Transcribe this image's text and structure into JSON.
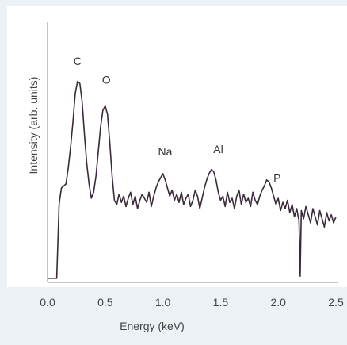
{
  "chart_data": {
    "type": "line",
    "title": "",
    "xlabel": "Energy (keV)",
    "ylabel": "Intensity (arb. units)",
    "xlim": [
      0,
      2.5
    ],
    "ylim": [
      0,
      1.3
    ],
    "grid": false,
    "tick_labels": [
      "0.0",
      "0.5",
      "1.0",
      "1.5",
      "2.0",
      "2.5"
    ],
    "peak_labels": [
      {
        "text": "C",
        "x": 0.26,
        "y": 1.06
      },
      {
        "text": "O",
        "x": 0.51,
        "y": 0.97
      },
      {
        "text": "Na",
        "x": 1.02,
        "y": 0.62
      },
      {
        "text": "Al",
        "x": 1.48,
        "y": 0.63
      },
      {
        "text": "P",
        "x": 1.99,
        "y": 0.49
      }
    ],
    "series": [
      {
        "x": [
          0.0,
          0.05,
          0.08,
          0.09,
          0.1,
          0.11,
          0.12,
          0.14,
          0.16,
          0.18,
          0.2,
          0.22,
          0.24,
          0.26,
          0.28,
          0.3,
          0.32,
          0.34,
          0.36,
          0.38,
          0.4,
          0.42,
          0.44,
          0.46,
          0.48,
          0.5,
          0.52,
          0.54,
          0.56,
          0.58,
          0.6,
          0.62,
          0.64,
          0.66,
          0.68,
          0.7,
          0.72,
          0.74,
          0.76,
          0.78,
          0.8,
          0.82,
          0.84,
          0.86,
          0.88,
          0.9,
          0.92,
          0.94,
          0.96,
          0.98,
          1.0,
          1.02,
          1.04,
          1.06,
          1.08,
          1.1,
          1.12,
          1.14,
          1.16,
          1.18,
          1.2,
          1.22,
          1.24,
          1.26,
          1.28,
          1.3,
          1.32,
          1.34,
          1.36,
          1.38,
          1.4,
          1.42,
          1.44,
          1.46,
          1.48,
          1.5,
          1.52,
          1.54,
          1.56,
          1.58,
          1.6,
          1.62,
          1.64,
          1.66,
          1.68,
          1.7,
          1.72,
          1.74,
          1.76,
          1.78,
          1.8,
          1.82,
          1.84,
          1.86,
          1.88,
          1.9,
          1.92,
          1.94,
          1.96,
          1.98,
          2.0,
          2.02,
          2.04,
          2.06,
          2.08,
          2.1,
          2.12,
          2.14,
          2.16,
          2.18,
          2.19,
          2.2,
          2.22,
          2.24,
          2.26,
          2.28,
          2.3,
          2.32,
          2.34,
          2.36,
          2.38,
          2.4,
          2.42,
          2.44,
          2.46,
          2.48,
          2.5
        ],
        "values": [
          0.02,
          0.02,
          0.02,
          0.2,
          0.38,
          0.42,
          0.46,
          0.47,
          0.48,
          0.56,
          0.66,
          0.78,
          0.92,
          0.98,
          0.97,
          0.88,
          0.72,
          0.58,
          0.48,
          0.41,
          0.44,
          0.52,
          0.64,
          0.76,
          0.84,
          0.86,
          0.82,
          0.68,
          0.52,
          0.4,
          0.38,
          0.43,
          0.39,
          0.42,
          0.37,
          0.41,
          0.44,
          0.38,
          0.42,
          0.36,
          0.4,
          0.43,
          0.41,
          0.39,
          0.44,
          0.37,
          0.42,
          0.46,
          0.49,
          0.51,
          0.53,
          0.5,
          0.46,
          0.42,
          0.45,
          0.4,
          0.43,
          0.39,
          0.44,
          0.38,
          0.41,
          0.43,
          0.37,
          0.4,
          0.45,
          0.42,
          0.36,
          0.41,
          0.46,
          0.5,
          0.53,
          0.55,
          0.54,
          0.5,
          0.44,
          0.4,
          0.42,
          0.37,
          0.44,
          0.39,
          0.41,
          0.36,
          0.42,
          0.45,
          0.38,
          0.43,
          0.39,
          0.41,
          0.37,
          0.44,
          0.4,
          0.38,
          0.42,
          0.45,
          0.47,
          0.5,
          0.49,
          0.46,
          0.42,
          0.38,
          0.41,
          0.35,
          0.39,
          0.36,
          0.4,
          0.34,
          0.38,
          0.32,
          0.36,
          0.3,
          0.03,
          0.35,
          0.31,
          0.37,
          0.33,
          0.29,
          0.36,
          0.32,
          0.28,
          0.35,
          0.31,
          0.27,
          0.34,
          0.3,
          0.33,
          0.29,
          0.32
        ]
      }
    ]
  }
}
